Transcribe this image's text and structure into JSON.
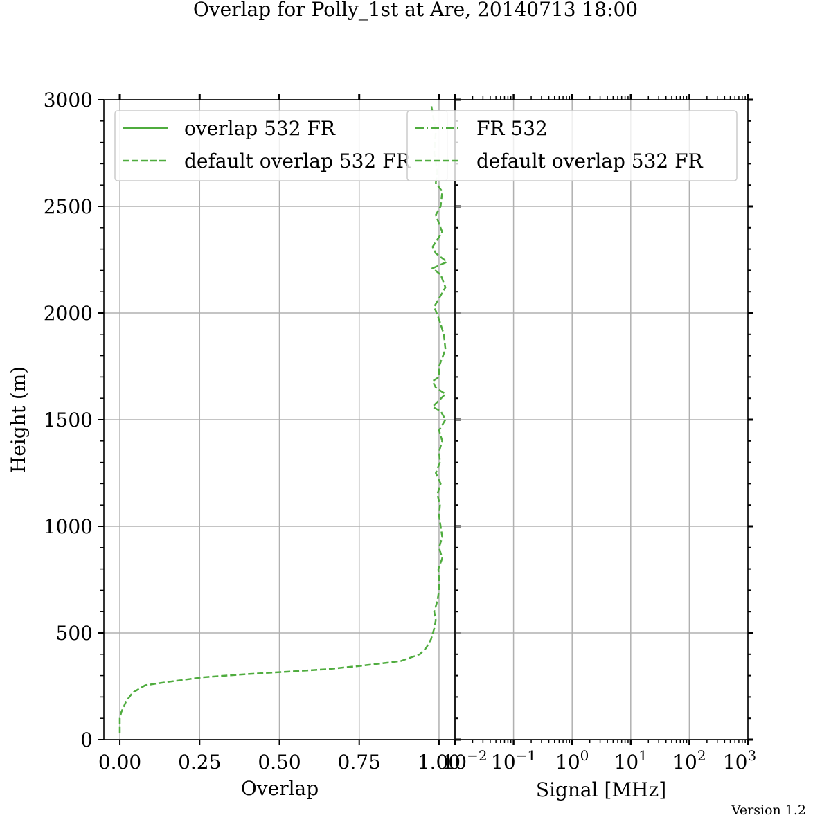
{
  "title": "Overlap for Polly_1st at Are, 20140713 18:00",
  "version": "Version 1.2",
  "colors": {
    "series": "#4fac3e"
  },
  "chart_data": [
    {
      "type": "line",
      "panel": "left",
      "xlabel": "Overlap",
      "ylabel": "Height (m)",
      "xlim": [
        -0.05,
        1.05
      ],
      "ylim": [
        0,
        3000
      ],
      "x_ticks": [
        0.0,
        0.25,
        0.5,
        0.75,
        1.0
      ],
      "x_tick_labels": [
        "0.00",
        "0.25",
        "0.50",
        "0.75",
        "1.00"
      ],
      "y_ticks": [
        0,
        500,
        1000,
        1500,
        2000,
        2500,
        3000
      ],
      "y_tick_labels": [
        "0",
        "500",
        "1000",
        "1500",
        "2000",
        "2500",
        "3000"
      ],
      "grid": true,
      "legend_position": "top-left",
      "legend": [
        {
          "label": "overlap 532 FR",
          "style": "solid"
        },
        {
          "label": "default overlap 532 FR",
          "style": "dashed"
        }
      ],
      "series": [
        {
          "name": "default overlap 532 FR",
          "style": "dashed",
          "points": [
            [
              0.0,
              30
            ],
            [
              0.0,
              100
            ],
            [
              0.005,
              130
            ],
            [
              0.02,
              180
            ],
            [
              0.04,
              220
            ],
            [
              0.08,
              255
            ],
            [
              0.15,
              270
            ],
            [
              0.26,
              292
            ],
            [
              0.4,
              307
            ],
            [
              0.52,
              318
            ],
            [
              0.65,
              330
            ],
            [
              0.75,
              345
            ],
            [
              0.88,
              368
            ],
            [
              0.94,
              400
            ],
            [
              0.96,
              430
            ],
            [
              0.975,
              470
            ],
            [
              0.985,
              520
            ],
            [
              0.99,
              560
            ],
            [
              0.985,
              600
            ],
            [
              0.995,
              650
            ],
            [
              1.0,
              700
            ],
            [
              1.0,
              750
            ],
            [
              0.998,
              800
            ],
            [
              1.01,
              850
            ],
            [
              1.0,
              900
            ],
            [
              1.01,
              950
            ],
            [
              1.005,
              1000
            ],
            [
              1.0,
              1050
            ],
            [
              1.003,
              1100
            ],
            [
              0.995,
              1150
            ],
            [
              1.005,
              1200
            ],
            [
              0.99,
              1250
            ],
            [
              1.003,
              1300
            ],
            [
              1.0,
              1350
            ],
            [
              1.01,
              1400
            ],
            [
              1.0,
              1450
            ],
            [
              1.02,
              1500
            ],
            [
              1.005,
              1540
            ],
            [
              0.98,
              1560
            ],
            [
              1.02,
              1620
            ],
            [
              0.99,
              1650
            ],
            [
              0.98,
              1680
            ],
            [
              1.0,
              1700
            ],
            [
              1.0,
              1750
            ],
            [
              1.02,
              1830
            ],
            [
              1.015,
              1900
            ],
            [
              1.0,
              1970
            ],
            [
              0.985,
              2030
            ],
            [
              1.02,
              2120
            ],
            [
              1.005,
              2180
            ],
            [
              0.98,
              2210
            ],
            [
              1.025,
              2240
            ],
            [
              0.99,
              2280
            ],
            [
              0.98,
              2310
            ],
            [
              1.01,
              2380
            ],
            [
              0.99,
              2460
            ],
            [
              1.005,
              2500
            ],
            [
              1.01,
              2570
            ],
            [
              0.99,
              2610
            ],
            [
              0.995,
              2660
            ],
            [
              0.985,
              2750
            ],
            [
              0.99,
              2850
            ],
            [
              0.975,
              2980
            ]
          ]
        }
      ]
    },
    {
      "type": "line",
      "panel": "right",
      "xlabel": "Signal [MHz]",
      "xscale": "log",
      "xlim": [
        0.01,
        1000
      ],
      "ylim": [
        0,
        3000
      ],
      "x_tick_exponents": [
        "−2",
        "−1",
        "0",
        "1",
        "2",
        "3"
      ],
      "x_tick_base": "10",
      "grid": true,
      "legend_position": "top-right",
      "legend": [
        {
          "label": "FR 532",
          "style": "dashdot"
        },
        {
          "label": "default overlap 532 FR",
          "style": "dashed"
        }
      ],
      "series": []
    }
  ]
}
